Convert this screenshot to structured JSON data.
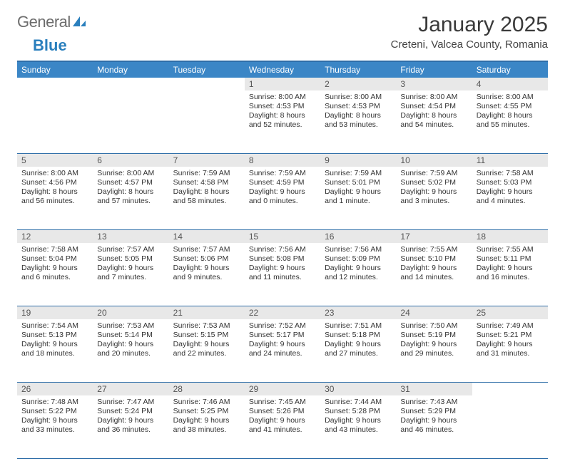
{
  "logo": {
    "part1": "General",
    "part2": "Blue"
  },
  "title": "January 2025",
  "location": "Creteni, Valcea County, Romania",
  "colors": {
    "header_bg": "#3b86c6",
    "header_text": "#ffffff",
    "rule": "#2f6ea8",
    "daynum_bg": "#e8e8e8",
    "daynum_text": "#555555",
    "body_text": "#333333",
    "logo_gray": "#6c6c6c",
    "logo_blue": "#2a7fbd",
    "page_bg": "#ffffff"
  },
  "typography": {
    "title_fontsize": 30,
    "location_fontsize": 15,
    "dayheader_fontsize": 12,
    "daynum_fontsize": 12,
    "cell_fontsize": 10.5
  },
  "day_headers": [
    "Sunday",
    "Monday",
    "Tuesday",
    "Wednesday",
    "Thursday",
    "Friday",
    "Saturday"
  ],
  "weeks": [
    [
      null,
      null,
      null,
      {
        "n": "1",
        "sunrise": "8:00 AM",
        "sunset": "4:53 PM",
        "dl": "8 hours and 52 minutes."
      },
      {
        "n": "2",
        "sunrise": "8:00 AM",
        "sunset": "4:53 PM",
        "dl": "8 hours and 53 minutes."
      },
      {
        "n": "3",
        "sunrise": "8:00 AM",
        "sunset": "4:54 PM",
        "dl": "8 hours and 54 minutes."
      },
      {
        "n": "4",
        "sunrise": "8:00 AM",
        "sunset": "4:55 PM",
        "dl": "8 hours and 55 minutes."
      }
    ],
    [
      {
        "n": "5",
        "sunrise": "8:00 AM",
        "sunset": "4:56 PM",
        "dl": "8 hours and 56 minutes."
      },
      {
        "n": "6",
        "sunrise": "8:00 AM",
        "sunset": "4:57 PM",
        "dl": "8 hours and 57 minutes."
      },
      {
        "n": "7",
        "sunrise": "7:59 AM",
        "sunset": "4:58 PM",
        "dl": "8 hours and 58 minutes."
      },
      {
        "n": "8",
        "sunrise": "7:59 AM",
        "sunset": "4:59 PM",
        "dl": "9 hours and 0 minutes."
      },
      {
        "n": "9",
        "sunrise": "7:59 AM",
        "sunset": "5:01 PM",
        "dl": "9 hours and 1 minute."
      },
      {
        "n": "10",
        "sunrise": "7:59 AM",
        "sunset": "5:02 PM",
        "dl": "9 hours and 3 minutes."
      },
      {
        "n": "11",
        "sunrise": "7:58 AM",
        "sunset": "5:03 PM",
        "dl": "9 hours and 4 minutes."
      }
    ],
    [
      {
        "n": "12",
        "sunrise": "7:58 AM",
        "sunset": "5:04 PM",
        "dl": "9 hours and 6 minutes."
      },
      {
        "n": "13",
        "sunrise": "7:57 AM",
        "sunset": "5:05 PM",
        "dl": "9 hours and 7 minutes."
      },
      {
        "n": "14",
        "sunrise": "7:57 AM",
        "sunset": "5:06 PM",
        "dl": "9 hours and 9 minutes."
      },
      {
        "n": "15",
        "sunrise": "7:56 AM",
        "sunset": "5:08 PM",
        "dl": "9 hours and 11 minutes."
      },
      {
        "n": "16",
        "sunrise": "7:56 AM",
        "sunset": "5:09 PM",
        "dl": "9 hours and 12 minutes."
      },
      {
        "n": "17",
        "sunrise": "7:55 AM",
        "sunset": "5:10 PM",
        "dl": "9 hours and 14 minutes."
      },
      {
        "n": "18",
        "sunrise": "7:55 AM",
        "sunset": "5:11 PM",
        "dl": "9 hours and 16 minutes."
      }
    ],
    [
      {
        "n": "19",
        "sunrise": "7:54 AM",
        "sunset": "5:13 PM",
        "dl": "9 hours and 18 minutes."
      },
      {
        "n": "20",
        "sunrise": "7:53 AM",
        "sunset": "5:14 PM",
        "dl": "9 hours and 20 minutes."
      },
      {
        "n": "21",
        "sunrise": "7:53 AM",
        "sunset": "5:15 PM",
        "dl": "9 hours and 22 minutes."
      },
      {
        "n": "22",
        "sunrise": "7:52 AM",
        "sunset": "5:17 PM",
        "dl": "9 hours and 24 minutes."
      },
      {
        "n": "23",
        "sunrise": "7:51 AM",
        "sunset": "5:18 PM",
        "dl": "9 hours and 27 minutes."
      },
      {
        "n": "24",
        "sunrise": "7:50 AM",
        "sunset": "5:19 PM",
        "dl": "9 hours and 29 minutes."
      },
      {
        "n": "25",
        "sunrise": "7:49 AM",
        "sunset": "5:21 PM",
        "dl": "9 hours and 31 minutes."
      }
    ],
    [
      {
        "n": "26",
        "sunrise": "7:48 AM",
        "sunset": "5:22 PM",
        "dl": "9 hours and 33 minutes."
      },
      {
        "n": "27",
        "sunrise": "7:47 AM",
        "sunset": "5:24 PM",
        "dl": "9 hours and 36 minutes."
      },
      {
        "n": "28",
        "sunrise": "7:46 AM",
        "sunset": "5:25 PM",
        "dl": "9 hours and 38 minutes."
      },
      {
        "n": "29",
        "sunrise": "7:45 AM",
        "sunset": "5:26 PM",
        "dl": "9 hours and 41 minutes."
      },
      {
        "n": "30",
        "sunrise": "7:44 AM",
        "sunset": "5:28 PM",
        "dl": "9 hours and 43 minutes."
      },
      {
        "n": "31",
        "sunrise": "7:43 AM",
        "sunset": "5:29 PM",
        "dl": "9 hours and 46 minutes."
      },
      null
    ]
  ],
  "labels": {
    "sunrise": "Sunrise:",
    "sunset": "Sunset:",
    "daylight": "Daylight:"
  }
}
